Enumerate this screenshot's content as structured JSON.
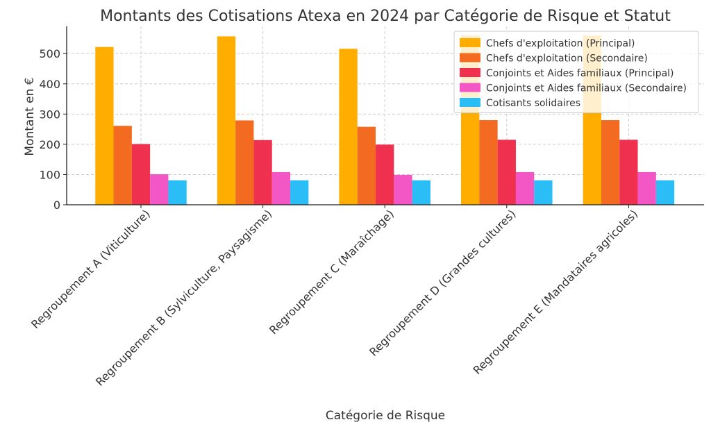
{
  "chart_data": {
    "type": "bar",
    "title": "Montants des Cotisations Atexa en 2024 par Catégorie de Risque et Statut",
    "xlabel": "Catégorie de Risque",
    "ylabel": "Montant en €",
    "ylim": [
      0,
      590
    ],
    "yticks": [
      0,
      100,
      200,
      300,
      400,
      500
    ],
    "grid": true,
    "legend_position": "top-right",
    "categories": [
      "Regroupement A (Viticulture)",
      "Regroupement B (Sylviculture, Paysagisme)",
      "Regroupement C (Maraîchage)",
      "Regroupement D (Grandes cultures)",
      "Regroupement E (Mandataires agricoles)"
    ],
    "series": [
      {
        "name": "Chefs d'exploitation (Principal)",
        "color": "#FFAE00",
        "values": [
          522,
          557,
          516,
          560,
          560
        ]
      },
      {
        "name": "Chefs d'exploitation (Secondaire)",
        "color": "#F26B21",
        "values": [
          261,
          279,
          258,
          280,
          280
        ]
      },
      {
        "name": "Conjoints et Aides familiaux (Principal)",
        "color": "#F0304F",
        "values": [
          201,
          214,
          199,
          215,
          215
        ]
      },
      {
        "name": "Conjoints et Aides familiaux (Secondaire)",
        "color": "#F257C5",
        "values": [
          101,
          108,
          99,
          108,
          108
        ]
      },
      {
        "name": "Cotisants solidaires",
        "color": "#2BBDF5",
        "values": [
          81,
          81,
          81,
          81,
          81
        ]
      }
    ]
  }
}
